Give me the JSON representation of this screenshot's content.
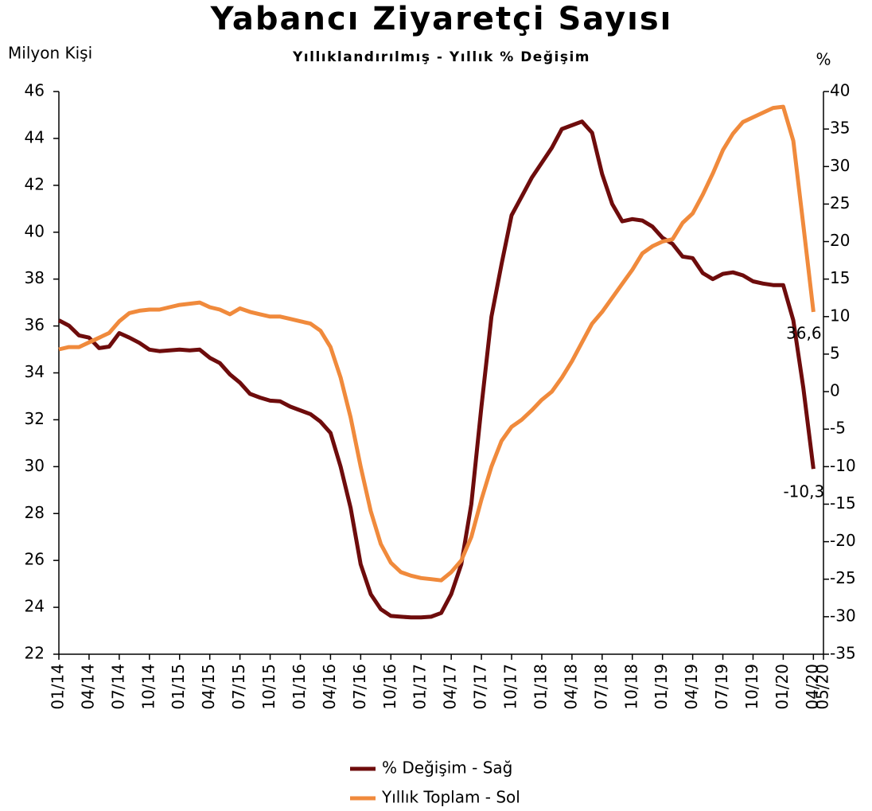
{
  "chart_data": {
    "type": "line",
    "title": "Yabancı Ziyaretçi Sayısı",
    "subtitle": "Yıllıklandırılmış - Yıllık % Değişim",
    "ylabel": "Milyon Kişi",
    "y2label": "%",
    "categories": [
      "01/14",
      null,
      null,
      "04/14",
      null,
      null,
      "07/14",
      null,
      null,
      "10/14",
      null,
      null,
      "01/15",
      null,
      null,
      "04/15",
      null,
      null,
      "07/15",
      null,
      null,
      "10/15",
      null,
      null,
      "01/16",
      null,
      null,
      "04/16",
      null,
      null,
      "07/16",
      null,
      null,
      "10/16",
      null,
      null,
      "01/17",
      null,
      null,
      "04/17",
      null,
      null,
      "07/17",
      null,
      null,
      "10/17",
      null,
      null,
      "01/18",
      null,
      null,
      "04/18",
      null,
      null,
      "07/18",
      null,
      null,
      "10/18",
      null,
      null,
      "01/19",
      null,
      null,
      "04/19",
      null,
      null,
      "07/19",
      null,
      null,
      "10/19",
      null,
      null,
      "01/20",
      null,
      null,
      "04/20",
      "05/20"
    ],
    "ylim": [
      22,
      46
    ],
    "yticks": [
      22,
      24,
      26,
      28,
      30,
      32,
      34,
      36,
      38,
      40,
      42,
      44,
      46
    ],
    "y2lim": [
      -35,
      40
    ],
    "y2ticks": [
      -35,
      -30,
      -25,
      -20,
      -15,
      -10,
      -5,
      0,
      5,
      10,
      15,
      20,
      25,
      30,
      35,
      40
    ],
    "series": [
      {
        "name": "% Değişim - Sağ",
        "color": "#6e0c0c",
        "axis": "y2",
        "values": [
          9.5,
          8.8,
          7.5,
          7.2,
          5.8,
          6.0,
          7.8,
          7.2,
          6.5,
          5.6,
          5.4,
          5.5,
          5.6,
          5.5,
          5.6,
          4.5,
          3.8,
          2.3,
          1.2,
          -0.3,
          -0.8,
          -1.2,
          -1.3,
          -2.0,
          -2.5,
          -3.0,
          -4.0,
          -5.5,
          -10.0,
          -15.5,
          -23.0,
          -27.0,
          -29.0,
          -29.9,
          -30.0,
          -30.1,
          -30.1,
          -30.0,
          -29.5,
          -27.0,
          -23.0,
          -15.0,
          -2.0,
          10.0,
          17.0,
          23.5,
          26.0,
          28.5,
          30.5,
          32.5,
          35.0,
          35.5,
          36.0,
          34.5,
          29.0,
          25.0,
          22.7,
          23.0,
          22.8,
          22.0,
          20.5,
          19.7,
          18.0,
          17.8,
          15.8,
          15.0,
          15.7,
          15.9,
          15.5,
          14.7,
          14.4,
          14.2,
          14.2,
          9.5,
          0.5,
          -10.3,
          null
        ],
        "value_labels": [
          null,
          null,
          null,
          null,
          null,
          null,
          null,
          null,
          null,
          null,
          null,
          null,
          null,
          null,
          null,
          null,
          null,
          null,
          null,
          null,
          null,
          null,
          null,
          null,
          null,
          null,
          null,
          null,
          null,
          null,
          null,
          null,
          null,
          null,
          null,
          null,
          null,
          null,
          null,
          null,
          null,
          null,
          null,
          null,
          null,
          null,
          null,
          null,
          null,
          null,
          null,
          null,
          null,
          null,
          null,
          null,
          null,
          null,
          null,
          null,
          null,
          null,
          null,
          null,
          null,
          null,
          null,
          null,
          null,
          null,
          null,
          null,
          null,
          null,
          null,
          "-10,3",
          null
        ]
      },
      {
        "name": "Yıllık Toplam - Sol",
        "color": "#f08a3c",
        "values": [
          35.0,
          35.1,
          35.1,
          35.3,
          35.5,
          35.7,
          36.2,
          36.55,
          36.65,
          36.7,
          36.7,
          36.8,
          36.9,
          36.95,
          37.0,
          36.8,
          36.7,
          36.5,
          36.75,
          36.6,
          36.5,
          36.4,
          36.4,
          36.3,
          36.2,
          36.1,
          35.8,
          35.1,
          33.8,
          32.1,
          30.0,
          28.1,
          26.7,
          25.9,
          25.5,
          25.35,
          25.25,
          25.2,
          25.15,
          25.5,
          26.0,
          27.0,
          28.6,
          30.0,
          31.1,
          31.7,
          32.0,
          32.4,
          32.85,
          33.2,
          33.8,
          34.5,
          35.3,
          36.1,
          36.6,
          37.2,
          37.8,
          38.4,
          39.1,
          39.4,
          39.6,
          39.7,
          40.4,
          40.8,
          41.6,
          42.5,
          43.5,
          44.2,
          44.7,
          44.9,
          45.1,
          45.3,
          45.35,
          43.9,
          40.3,
          36.6,
          null
        ],
        "value_labels": [
          null,
          null,
          null,
          null,
          null,
          null,
          null,
          null,
          null,
          null,
          null,
          null,
          null,
          null,
          null,
          null,
          null,
          null,
          null,
          null,
          null,
          null,
          null,
          null,
          null,
          null,
          null,
          null,
          null,
          null,
          null,
          null,
          null,
          null,
          null,
          null,
          null,
          null,
          null,
          null,
          null,
          null,
          null,
          null,
          null,
          null,
          null,
          null,
          null,
          null,
          null,
          null,
          null,
          null,
          null,
          null,
          null,
          null,
          null,
          null,
          null,
          null,
          null,
          null,
          null,
          null,
          null,
          null,
          null,
          null,
          null,
          null,
          null,
          null,
          null,
          "36,6",
          null
        ]
      }
    ]
  }
}
